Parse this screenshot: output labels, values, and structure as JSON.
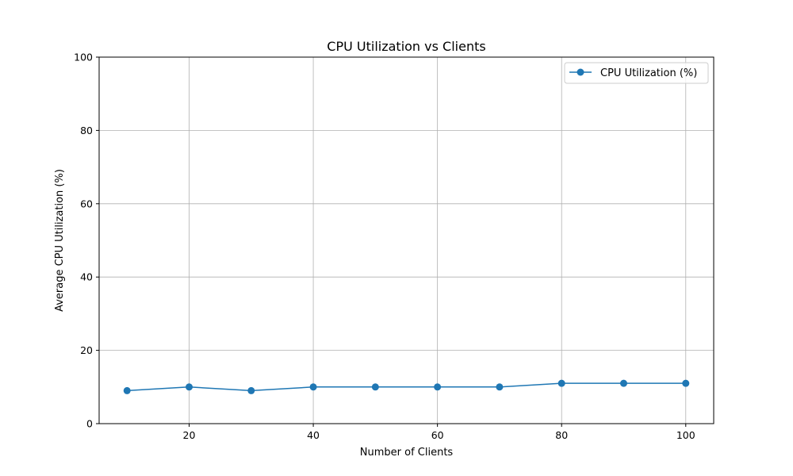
{
  "chart_data": {
    "type": "line",
    "title": "CPU Utilization vs Clients",
    "xlabel": "Number of Clients",
    "ylabel": "Average CPU Utilization (%)",
    "x": [
      10,
      20,
      30,
      40,
      50,
      60,
      70,
      80,
      90,
      100
    ],
    "series": [
      {
        "name": "CPU Utilization (%)",
        "values": [
          9,
          10,
          9,
          10,
          10,
          10,
          10,
          11,
          11,
          11
        ],
        "color": "#1f77b4",
        "marker": "circle"
      }
    ],
    "xlim": [
      5.5,
      104.5
    ],
    "ylim": [
      0,
      100
    ],
    "xticks": [
      20,
      40,
      60,
      80,
      100
    ],
    "yticks": [
      0,
      20,
      40,
      60,
      80,
      100
    ],
    "grid": true,
    "legend_position": "top-right"
  }
}
